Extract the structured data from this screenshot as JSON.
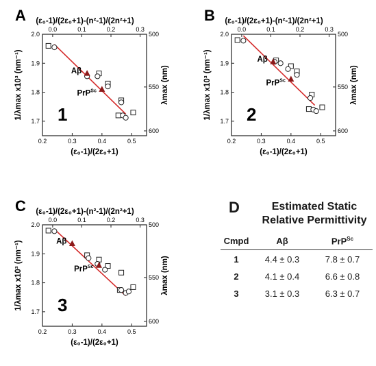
{
  "colors": {
    "fit_line": "#d42a2a",
    "marker_fill": "#8b1a1a",
    "axis": "#222222"
  },
  "axes": {
    "bottom_label": "(ε₀-1)/(2ε₀+1)",
    "top_label": "(ε₀-1)/(2ε₀+1)-(n²-1)/(2n²+1)",
    "left_label": "1/λmax x10³ (nm⁻¹)",
    "right_label": "λmax (nm)"
  },
  "chart_data": [
    {
      "type": "scatter",
      "panel": "A",
      "number": "1",
      "x": {
        "range": [
          0.2,
          0.55
        ],
        "ticks": [
          "0.2",
          "0.3",
          "0.4",
          "0.5"
        ]
      },
      "top_x": {
        "ticks": [
          "0.0",
          "0.1",
          "0.2",
          "0.3"
        ]
      },
      "y": {
        "range": [
          1.65,
          2.0
        ],
        "ticks": [
          "1.7",
          "1.8",
          "1.9",
          "2.0"
        ]
      },
      "right_y": {
        "ticks": [
          "500",
          "550",
          "600"
        ]
      },
      "fit_line": {
        "x": [
          0.24,
          0.48
        ],
        "y": [
          1.965,
          1.725
        ]
      },
      "circles": [
        {
          "x": 0.24,
          "y": 1.955
        },
        {
          "x": 0.35,
          "y": 1.855
        },
        {
          "x": 0.385,
          "y": 1.855
        },
        {
          "x": 0.42,
          "y": 1.82
        },
        {
          "x": 0.465,
          "y": 1.765
        },
        {
          "x": 0.47,
          "y": 1.72
        },
        {
          "x": 0.48,
          "y": 1.712
        }
      ],
      "squares": [
        {
          "x": 0.22,
          "y": 1.96
        },
        {
          "x": 0.39,
          "y": 1.865
        },
        {
          "x": 0.42,
          "y": 1.83
        },
        {
          "x": 0.465,
          "y": 1.772
        },
        {
          "x": 0.505,
          "y": 1.73
        },
        {
          "x": 0.455,
          "y": 1.72
        }
      ],
      "triangles": [
        {
          "x": 0.35,
          "y": 1.865,
          "label": "Aβ"
        },
        {
          "x": 0.4,
          "y": 1.81,
          "label": "PrPSc"
        }
      ]
    },
    {
      "type": "scatter",
      "panel": "B",
      "number": "2",
      "x": {
        "range": [
          0.2,
          0.55
        ],
        "ticks": [
          "0.2",
          "0.3",
          "0.4",
          "0.5"
        ]
      },
      "top_x": {
        "ticks": [
          "0.0",
          "0.1",
          "0.2",
          "0.3"
        ]
      },
      "y": {
        "range": [
          1.65,
          2.0
        ],
        "ticks": [
          "1.7",
          "1.8",
          "1.9",
          "2.0"
        ]
      },
      "right_y": {
        "ticks": [
          "500",
          "550",
          "600"
        ]
      },
      "fit_line": {
        "x": [
          0.24,
          0.48
        ],
        "y": [
          1.995,
          1.755
        ]
      },
      "circles": [
        {
          "x": 0.24,
          "y": 1.978
        },
        {
          "x": 0.345,
          "y": 1.905
        },
        {
          "x": 0.365,
          "y": 1.9
        },
        {
          "x": 0.39,
          "y": 1.88
        },
        {
          "x": 0.42,
          "y": 1.86
        },
        {
          "x": 0.465,
          "y": 1.78
        },
        {
          "x": 0.475,
          "y": 1.74
        },
        {
          "x": 0.485,
          "y": 1.735
        }
      ],
      "squares": [
        {
          "x": 0.22,
          "y": 1.98
        },
        {
          "x": 0.35,
          "y": 1.91
        },
        {
          "x": 0.4,
          "y": 1.89
        },
        {
          "x": 0.42,
          "y": 1.872
        },
        {
          "x": 0.47,
          "y": 1.792
        },
        {
          "x": 0.505,
          "y": 1.748
        },
        {
          "x": 0.46,
          "y": 1.742
        }
      ],
      "triangles": [
        {
          "x": 0.34,
          "y": 1.905,
          "label": "Aβ"
        },
        {
          "x": 0.4,
          "y": 1.845,
          "label": "PrPSc"
        }
      ]
    },
    {
      "type": "scatter",
      "panel": "C",
      "number": "3",
      "x": {
        "range": [
          0.2,
          0.55
        ],
        "ticks": [
          "0.2",
          "0.3",
          "0.4",
          "0.5"
        ]
      },
      "top_x": {
        "ticks": [
          "0.0",
          "0.1",
          "0.2",
          "0.3"
        ]
      },
      "y": {
        "range": [
          1.65,
          2.0
        ],
        "ticks": [
          "1.7",
          "1.8",
          "1.9",
          "2.0"
        ]
      },
      "right_y": {
        "ticks": [
          "500",
          "550",
          "600"
        ]
      },
      "fit_line": {
        "x": [
          0.24,
          0.48
        ],
        "y": [
          1.985,
          1.755
        ]
      },
      "circles": [
        {
          "x": 0.24,
          "y": 1.978
        },
        {
          "x": 0.355,
          "y": 1.885
        },
        {
          "x": 0.385,
          "y": 1.865
        },
        {
          "x": 0.41,
          "y": 1.845
        },
        {
          "x": 0.465,
          "y": 1.775
        },
        {
          "x": 0.48,
          "y": 1.765
        },
        {
          "x": 0.49,
          "y": 1.77
        }
      ],
      "squares": [
        {
          "x": 0.22,
          "y": 1.98
        },
        {
          "x": 0.35,
          "y": 1.895
        },
        {
          "x": 0.39,
          "y": 1.88
        },
        {
          "x": 0.42,
          "y": 1.858
        },
        {
          "x": 0.465,
          "y": 1.835
        },
        {
          "x": 0.505,
          "y": 1.785
        },
        {
          "x": 0.46,
          "y": 1.775
        }
      ],
      "triangles": [
        {
          "x": 0.3,
          "y": 1.935,
          "label": "Aβ"
        },
        {
          "x": 0.39,
          "y": 1.86,
          "label": "PrPSc"
        }
      ]
    },
    {
      "type": "table",
      "panel": "D",
      "title_line1": "Estimated Static",
      "title_line2": "Relative Permittivity",
      "headers": [
        "Cmpd",
        "Aβ",
        "PrP",
        "Sc"
      ],
      "rows": [
        {
          "cmpd": "1",
          "abeta": "4.4 ± 0.3",
          "prp": "7.8 ± 0.7"
        },
        {
          "cmpd": "2",
          "abeta": "4.1 ± 0.4",
          "prp": "6.6 ± 0.8"
        },
        {
          "cmpd": "3",
          "abeta": "3.1 ± 0.3",
          "prp": "6.3 ± 0.7"
        }
      ]
    }
  ]
}
